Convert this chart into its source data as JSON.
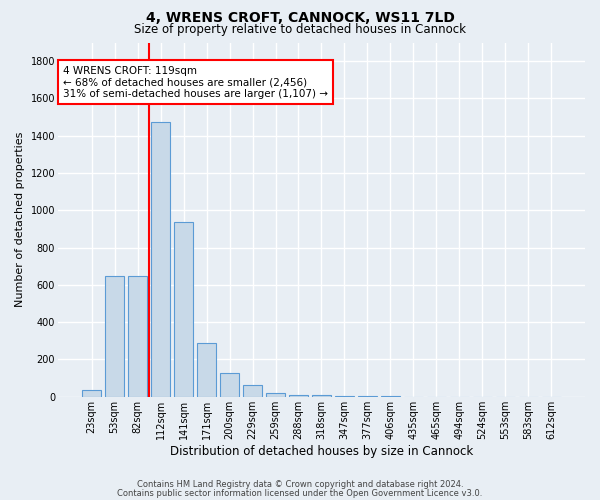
{
  "title": "4, WRENS CROFT, CANNOCK, WS11 7LD",
  "subtitle": "Size of property relative to detached houses in Cannock",
  "xlabel": "Distribution of detached houses by size in Cannock",
  "ylabel": "Number of detached properties",
  "bar_labels": [
    "23sqm",
    "53sqm",
    "82sqm",
    "112sqm",
    "141sqm",
    "171sqm",
    "200sqm",
    "229sqm",
    "259sqm",
    "288sqm",
    "318sqm",
    "347sqm",
    "377sqm",
    "406sqm",
    "435sqm",
    "465sqm",
    "494sqm",
    "524sqm",
    "553sqm",
    "583sqm",
    "612sqm"
  ],
  "bar_values": [
    35,
    650,
    650,
    1475,
    935,
    290,
    125,
    65,
    22,
    10,
    8,
    5,
    3,
    2,
    1,
    0,
    0,
    0,
    0,
    0,
    0
  ],
  "bar_color": "#c8d9e8",
  "bar_edgecolor": "#5b9bd5",
  "vline_color": "red",
  "vline_pos": 2.5,
  "ylim": [
    0,
    1900
  ],
  "yticks": [
    0,
    200,
    400,
    600,
    800,
    1000,
    1200,
    1400,
    1600,
    1800
  ],
  "annotation_text": "4 WRENS CROFT: 119sqm\n← 68% of detached houses are smaller (2,456)\n31% of semi-detached houses are larger (1,107) →",
  "annotation_box_color": "#ffffff",
  "annotation_box_edgecolor": "red",
  "footer_line1": "Contains HM Land Registry data © Crown copyright and database right 2024.",
  "footer_line2": "Contains public sector information licensed under the Open Government Licence v3.0.",
  "background_color": "#e8eef4",
  "plot_bg_color": "#e8eef4",
  "grid_color": "#ffffff",
  "title_fontsize": 10,
  "subtitle_fontsize": 8.5,
  "ylabel_fontsize": 8,
  "xlabel_fontsize": 8.5,
  "tick_fontsize": 7,
  "annotation_fontsize": 7.5,
  "footer_fontsize": 6.0,
  "figsize": [
    6.0,
    5.0
  ],
  "dpi": 100
}
